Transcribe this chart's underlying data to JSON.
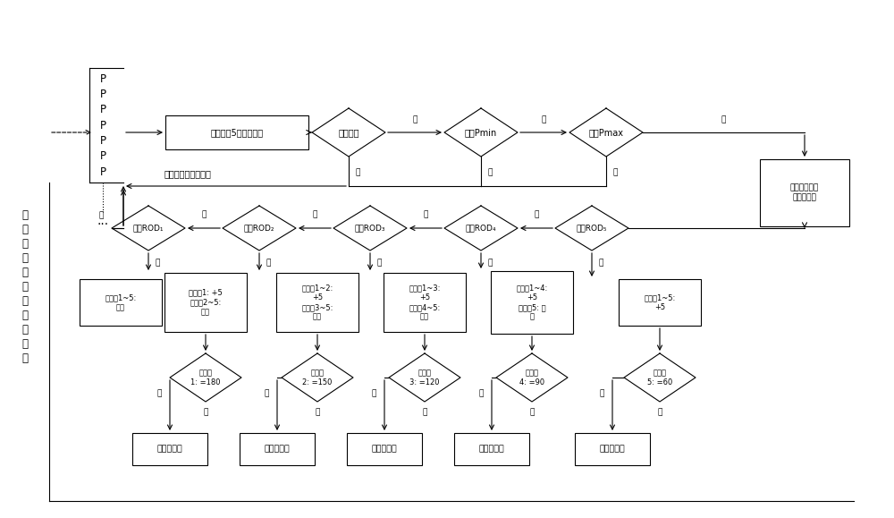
{
  "bg_color": "#ffffff",
  "left_label": "传\n感\n器\n采\n集\n到\n的\n压\n力\n数\n据",
  "receive_text": "接收处理5个最新数据",
  "rolling_text": "滚动接收下一个数据",
  "d1_text": "单调递减",
  "d2_text": "大于Pmin",
  "d3_text": "小于Pmax",
  "calc_text": "计算中间时刻\n的压降速率",
  "rod_labels": [
    "大于ROD₁",
    "大于ROD₂",
    "大于ROD₃",
    "大于ROD₄",
    "大于ROD₅"
  ],
  "act_labels": [
    "计数器1~5:\n归零",
    "计数器1: +5\n计数器2~5:\n归零",
    "计数器1~2:\n+5\n计数器3~5:\n归零",
    "计数器1~3:\n+5\n计数器4~5:\n归零",
    "计数器1~4:\n+5\n计数器5: 归\n零",
    "计数器1~5:\n+5"
  ],
  "chk_labels": [
    "计数器\n1: =180",
    "计数器\n2: =150",
    "计数器\n3: =120",
    "计数器\n4: =90",
    "计数器\n5: =60"
  ],
  "alarm_text": "关阀，报警",
  "yes": "是",
  "no": "否"
}
